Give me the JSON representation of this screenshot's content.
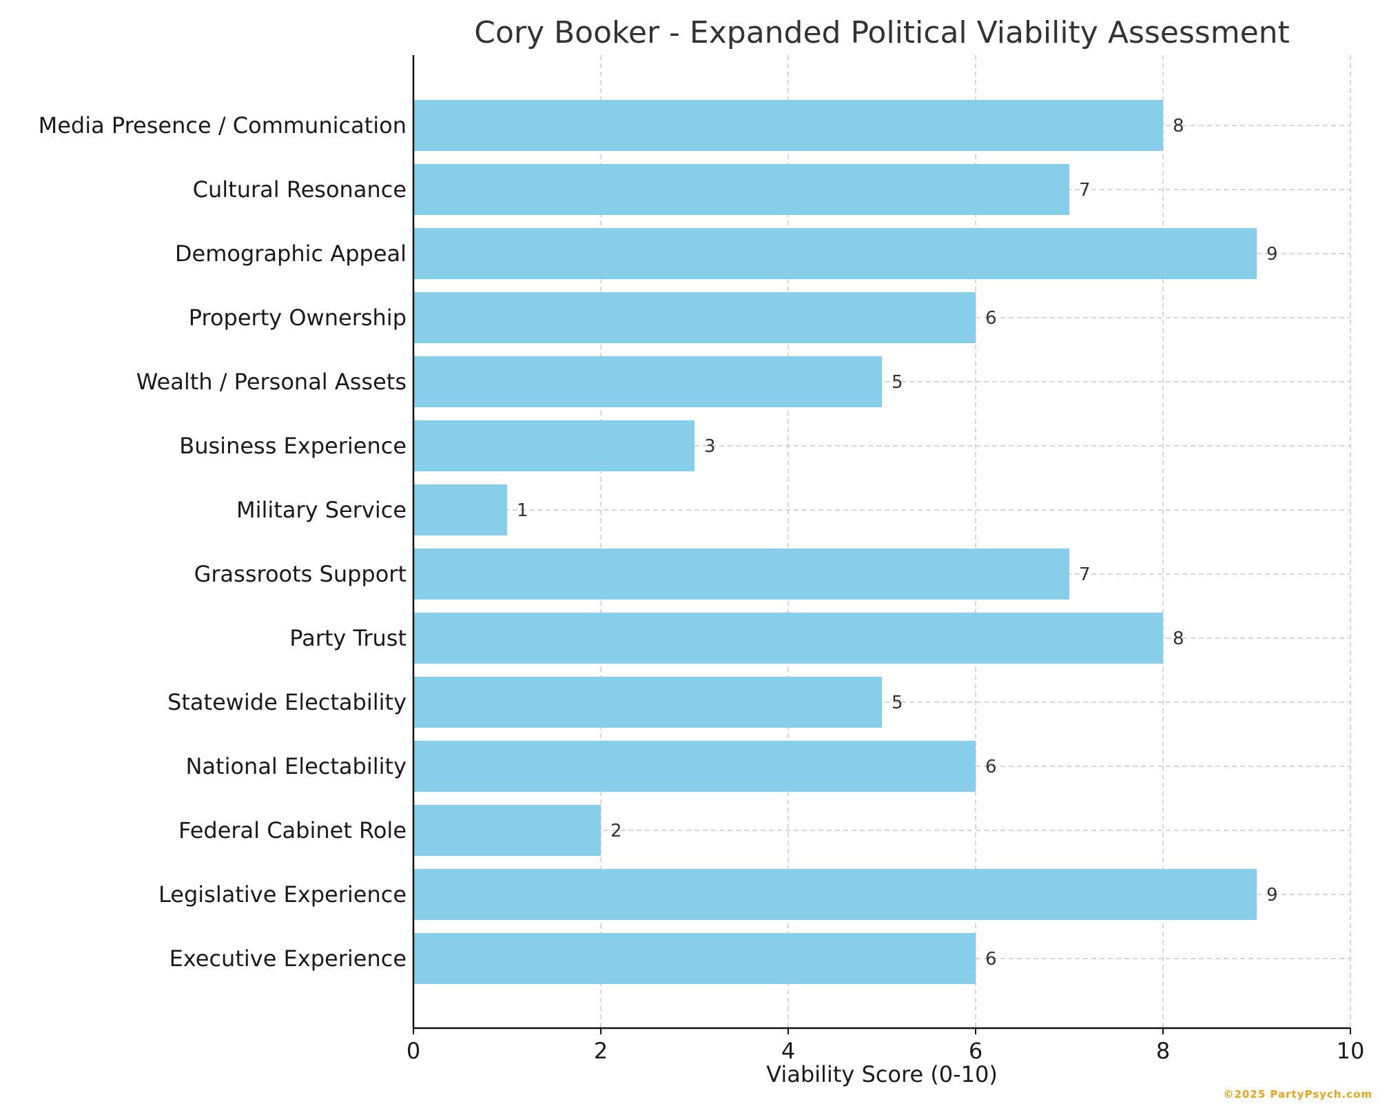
{
  "chart_data": {
    "type": "bar",
    "orientation": "horizontal",
    "title": "Cory Booker - Expanded Political Viability Assessment",
    "xlabel": "Viability Score (0-10)",
    "ylabel": "",
    "xlim": [
      0,
      10
    ],
    "xticks": [
      0,
      2,
      4,
      6,
      8,
      10
    ],
    "grid": true,
    "bar_color": "#87CEEB",
    "categories": [
      "Media Presence / Communication",
      "Cultural Resonance",
      "Demographic Appeal",
      "Property Ownership",
      "Wealth / Personal Assets",
      "Business Experience",
      "Military Service",
      "Grassroots Support",
      "Party Trust",
      "Statewide Electability",
      "National Electability",
      "Federal Cabinet Role",
      "Legislative Experience",
      "Executive Experience"
    ],
    "values": [
      8,
      7,
      9,
      6,
      5,
      3,
      1,
      7,
      8,
      5,
      6,
      2,
      9,
      6
    ]
  },
  "watermark": "©2025 PartyPsych.com"
}
